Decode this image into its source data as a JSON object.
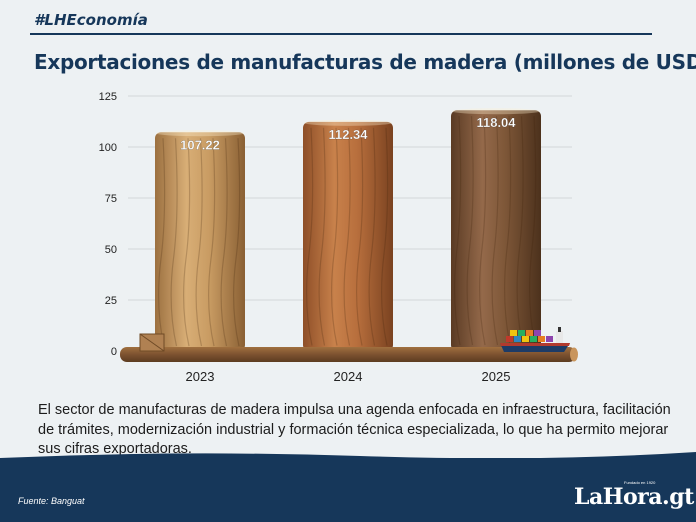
{
  "header": {
    "hashtag": "#LHEconomía",
    "title": "Exportaciones de manufacturas de madera (millones de USD)"
  },
  "chart_data": {
    "type": "bar",
    "categories": [
      "2023",
      "2024",
      "2025"
    ],
    "values": [
      107.22,
      112.34,
      118.04
    ],
    "value_labels": [
      "107.22",
      "112.34",
      "118.04"
    ],
    "title": "Exportaciones de manufacturas de madera (millones de USD)",
    "xlabel": "",
    "ylabel": "",
    "ylim": [
      0,
      125
    ],
    "yticks": [
      0,
      25,
      50,
      75,
      100,
      125
    ],
    "grid": true,
    "legend": "none",
    "bar_colors": [
      "#c79a62",
      "#b56e3e",
      "#7d5538"
    ]
  },
  "description": "El sector de manufacturas de madera impulsa una agenda enfocada en infraestructura, facilitación de trámites, modernización industrial y formación técnica especializada, lo que ha permito mejorar sus cifras exportadoras.",
  "footer": {
    "source": "Fuente: Banguat",
    "logo": "LaHora.gt",
    "logo_tag": "Fundado en 1920",
    "background": "#16375a"
  }
}
